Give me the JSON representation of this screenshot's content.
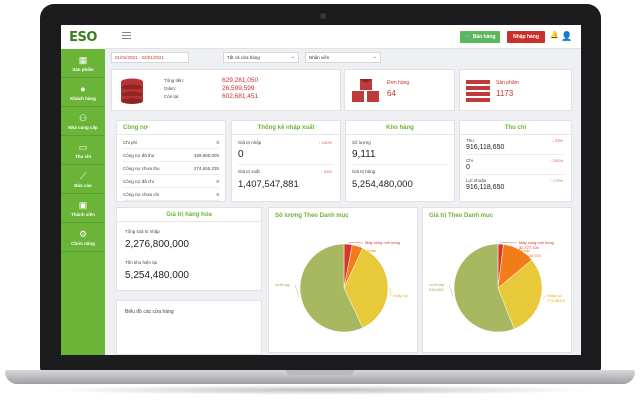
{
  "app": {
    "logo": "ESO"
  },
  "sidebar": {
    "items": [
      {
        "label": "Sản phẩm",
        "icon": "box-icon",
        "glyph": "▦"
      },
      {
        "label": "Khách hàng",
        "icon": "user-icon",
        "glyph": "●"
      },
      {
        "label": "Nhà cung cấp",
        "icon": "users-icon",
        "glyph": "⚇"
      },
      {
        "label": "Thu chi",
        "icon": "money-icon",
        "glyph": "▭"
      },
      {
        "label": "Báo cáo",
        "icon": "chart-line-icon",
        "glyph": "⟋"
      },
      {
        "label": "Thành viên",
        "icon": "id-card-icon",
        "glyph": "▣"
      },
      {
        "label": "Chức năng",
        "icon": "cogs-icon",
        "glyph": "⚙"
      }
    ]
  },
  "topbar": {
    "sell_label": "Bán hàng",
    "import_label": "Nhập hàng"
  },
  "filters": {
    "date_range": "01/01/2021 - 22/01/2021",
    "store": "Tất cả cửa hàng",
    "staff": "Nhân viên"
  },
  "summary": {
    "totals": {
      "total_label": "Tổng tiền:",
      "total_value": "629,281,050",
      "discount_label": "Giảm:",
      "discount_value": "26,599,599",
      "remaining_label": "Còn lại:",
      "remaining_value": "602,681,451"
    },
    "orders": {
      "label": "Đơn hàng",
      "value": "64"
    },
    "products": {
      "label": "Sản phẩm",
      "value": "1173"
    }
  },
  "debt": {
    "title": "Công nợ",
    "rows": [
      {
        "label": "Chi phí",
        "value": "0"
      },
      {
        "label": "Công nợ đã thu",
        "value": "329,860,000"
      },
      {
        "label": "Công nợ chưa thu",
        "value": "274,655,235"
      },
      {
        "label": "Công nợ đã chi",
        "value": "0"
      },
      {
        "label": "Công nợ chưa chi",
        "value": "0"
      }
    ]
  },
  "import_export": {
    "title": "Thống kê nhập xuất",
    "import_label": "Giá trị nhập",
    "import_value": "0",
    "import_change": "100%",
    "export_label": "Giá trị xuất",
    "export_value": "1,407,547,881",
    "export_change": "63%"
  },
  "warehouse": {
    "title": "Kho hàng",
    "qty_label": "Số lượng",
    "qty_value": "9,111",
    "value_label": "Giá trị hàng",
    "value_value": "5,254,480,000"
  },
  "cashflow": {
    "title": "Thu chi",
    "income_label": "Thu",
    "income_value": "916,118,650",
    "income_change": "23%",
    "expense_label": "Chi",
    "expense_value": "0",
    "expense_change": "100%",
    "profit_label": "Lợi nhuận",
    "profit_value": "916,118,650",
    "profit_change": "175%"
  },
  "goods_value": {
    "title": "Giá trị hàng hóa",
    "total_import_label": "Tổng Giá trị nhập",
    "total_import_value": "2,276,800,000",
    "stock_label": "Tồn kho hiện tại",
    "stock_value": "5,254,480,000"
  },
  "store_chart": {
    "title": "Biểu đồ các cửa hàng"
  },
  "colors": {
    "brand_green": "#6ab437",
    "red": "#c9302c",
    "pie_olive": "#a8b860",
    "pie_yellow": "#e8c93a",
    "pie_orange": "#f07d1a",
    "pie_red": "#d8342a"
  },
  "chart_data": [
    {
      "type": "pie",
      "title": "Số lượng Theo Danh mục",
      "categories": [
        "Máy xông mũi họng",
        "Khác",
        "Nhập số",
        "Vướt lạp"
      ],
      "values": [
        3,
        4,
        36,
        57
      ],
      "labels": [
        "Máy xông mũi họng",
        "Khác",
        "Nhập số",
        "vướt lạp"
      ]
    },
    {
      "type": "pie",
      "title": "Giá trị Theo Danh mục",
      "categories": [
        "Máy xông mũi họng",
        "Khác",
        "Nhập số",
        "Vướt lạp"
      ],
      "values": [
        2,
        12,
        30,
        56
      ],
      "labels": [
        "Máy xông mũi họng",
        "Khác",
        "Nhập số",
        "vướt lạp"
      ],
      "data_labels": [
        "32,727,100",
        "69,428,600",
        "175,383,6",
        "546,508"
      ]
    }
  ]
}
